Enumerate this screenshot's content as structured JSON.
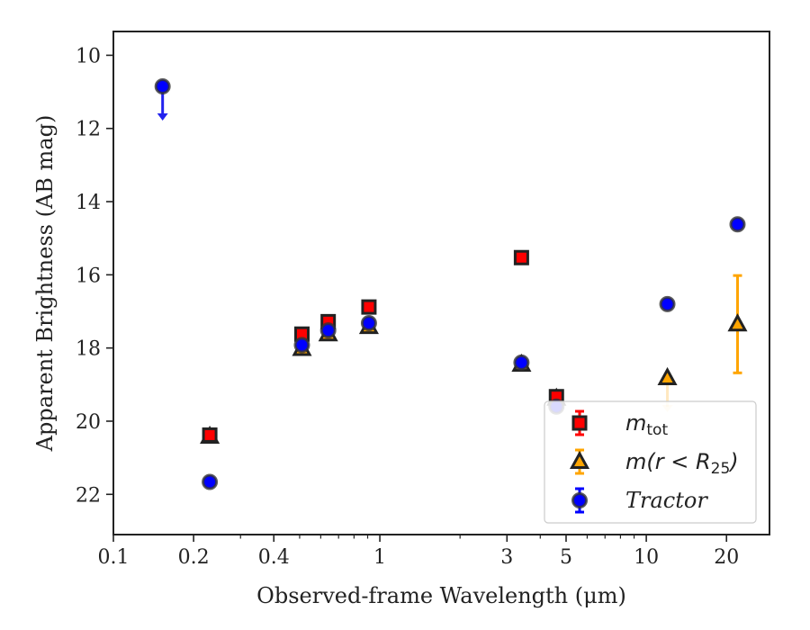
{
  "chart_data": {
    "type": "scatter",
    "xlabel": "Observed-frame Wavelength (μm)",
    "ylabel": "Apparent Brightness (AB mag)",
    "xscale": "log",
    "xlim": [
      0.1,
      29
    ],
    "ylim": [
      23.1,
      9.35
    ],
    "y_inverted": true,
    "xticks": [
      {
        "value": 0.1,
        "label": "0.1"
      },
      {
        "value": 0.2,
        "label": "0.2"
      },
      {
        "value": 0.4,
        "label": "0.4"
      },
      {
        "value": 1,
        "label": "1"
      },
      {
        "value": 3,
        "label": "3"
      },
      {
        "value": 5,
        "label": "5"
      },
      {
        "value": 10,
        "label": "10"
      },
      {
        "value": 20,
        "label": "20"
      }
    ],
    "yticks": [
      10,
      12,
      14,
      16,
      18,
      20,
      22
    ],
    "legend_position": "lower-right",
    "series": [
      {
        "name": "m_tot",
        "legend_main": "m",
        "legend_sub": "tot",
        "marker": "square",
        "color": "#ff0000",
        "edge_color": "#222222",
        "points": [
          {
            "x": 0.23,
            "y": 20.38
          },
          {
            "x": 0.51,
            "y": 17.62
          },
          {
            "x": 0.64,
            "y": 17.28
          },
          {
            "x": 0.91,
            "y": 16.88
          },
          {
            "x": 3.4,
            "y": 15.53
          },
          {
            "x": 4.6,
            "y": 19.33
          }
        ]
      },
      {
        "name": "m(r < R25)",
        "legend_main": "m(r < R",
        "legend_sub": "25",
        "legend_close": ")",
        "marker": "triangle",
        "color": "#ffa500",
        "edge_color": "#222222",
        "points": [
          {
            "x": 0.23,
            "y": 20.42
          },
          {
            "x": 0.51,
            "y": 18.02
          },
          {
            "x": 0.64,
            "y": 17.62
          },
          {
            "x": 0.91,
            "y": 17.42
          },
          {
            "x": 3.4,
            "y": 18.45
          },
          {
            "x": 4.6,
            "y": 19.38
          },
          {
            "x": 12.0,
            "y": 18.82,
            "upper_limit": true
          },
          {
            "x": 22.0,
            "y": 17.35,
            "yerr": [
              1.33,
              1.33
            ]
          }
        ]
      },
      {
        "name": "Tractor",
        "legend_main": "Tractor",
        "marker": "circle",
        "color": "#0000ff",
        "edge_color": "#333333",
        "points": [
          {
            "x": 0.153,
            "y": 10.85,
            "upper_limit": true
          },
          {
            "x": 0.23,
            "y": 21.66
          },
          {
            "x": 0.51,
            "y": 17.92
          },
          {
            "x": 0.64,
            "y": 17.52
          },
          {
            "x": 0.91,
            "y": 17.32
          },
          {
            "x": 3.4,
            "y": 18.4
          },
          {
            "x": 4.6,
            "y": 19.6
          },
          {
            "x": 12.0,
            "y": 16.8
          },
          {
            "x": 22.0,
            "y": 14.62
          }
        ]
      }
    ]
  }
}
